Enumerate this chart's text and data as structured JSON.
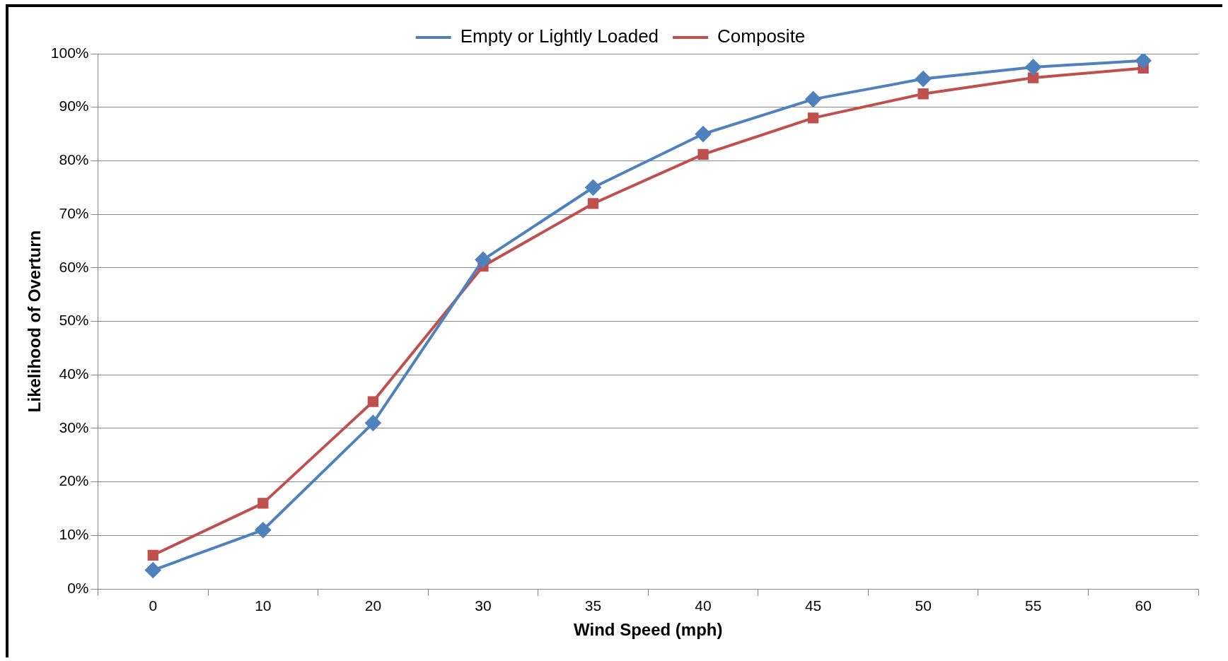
{
  "chart_data": {
    "type": "line",
    "xlabel": "Wind Speed (mph)",
    "ylabel": "Likelihood of Overturn",
    "categories": [
      "0",
      "10",
      "20",
      "30",
      "35",
      "40",
      "45",
      "50",
      "55",
      "60"
    ],
    "series": [
      {
        "name": "Empty or Lightly Loaded",
        "color": "#4f81bd",
        "marker": "diamond",
        "values": [
          3.5,
          11,
          31,
          61.5,
          75,
          85,
          91.5,
          95.3,
          97.5,
          98.7
        ]
      },
      {
        "name": "Composite",
        "color": "#c0504d",
        "marker": "square",
        "values": [
          6.3,
          16,
          35,
          60.3,
          72,
          81.2,
          88,
          92.5,
          95.5,
          97.3
        ]
      }
    ],
    "ylim": [
      0,
      100
    ],
    "yticks": [
      {
        "value": 0,
        "label": "0%"
      },
      {
        "value": 10,
        "label": "10%"
      },
      {
        "value": 20,
        "label": "20%"
      },
      {
        "value": 30,
        "label": "30%"
      },
      {
        "value": 40,
        "label": "40%"
      },
      {
        "value": 50,
        "label": "50%"
      },
      {
        "value": 60,
        "label": "60%"
      },
      {
        "value": 70,
        "label": "70%"
      },
      {
        "value": 80,
        "label": "80%"
      },
      {
        "value": 90,
        "label": "90%"
      },
      {
        "value": 100,
        "label": "100%"
      }
    ],
    "grid": "y",
    "legend": "top",
    "line_style": "solid"
  }
}
